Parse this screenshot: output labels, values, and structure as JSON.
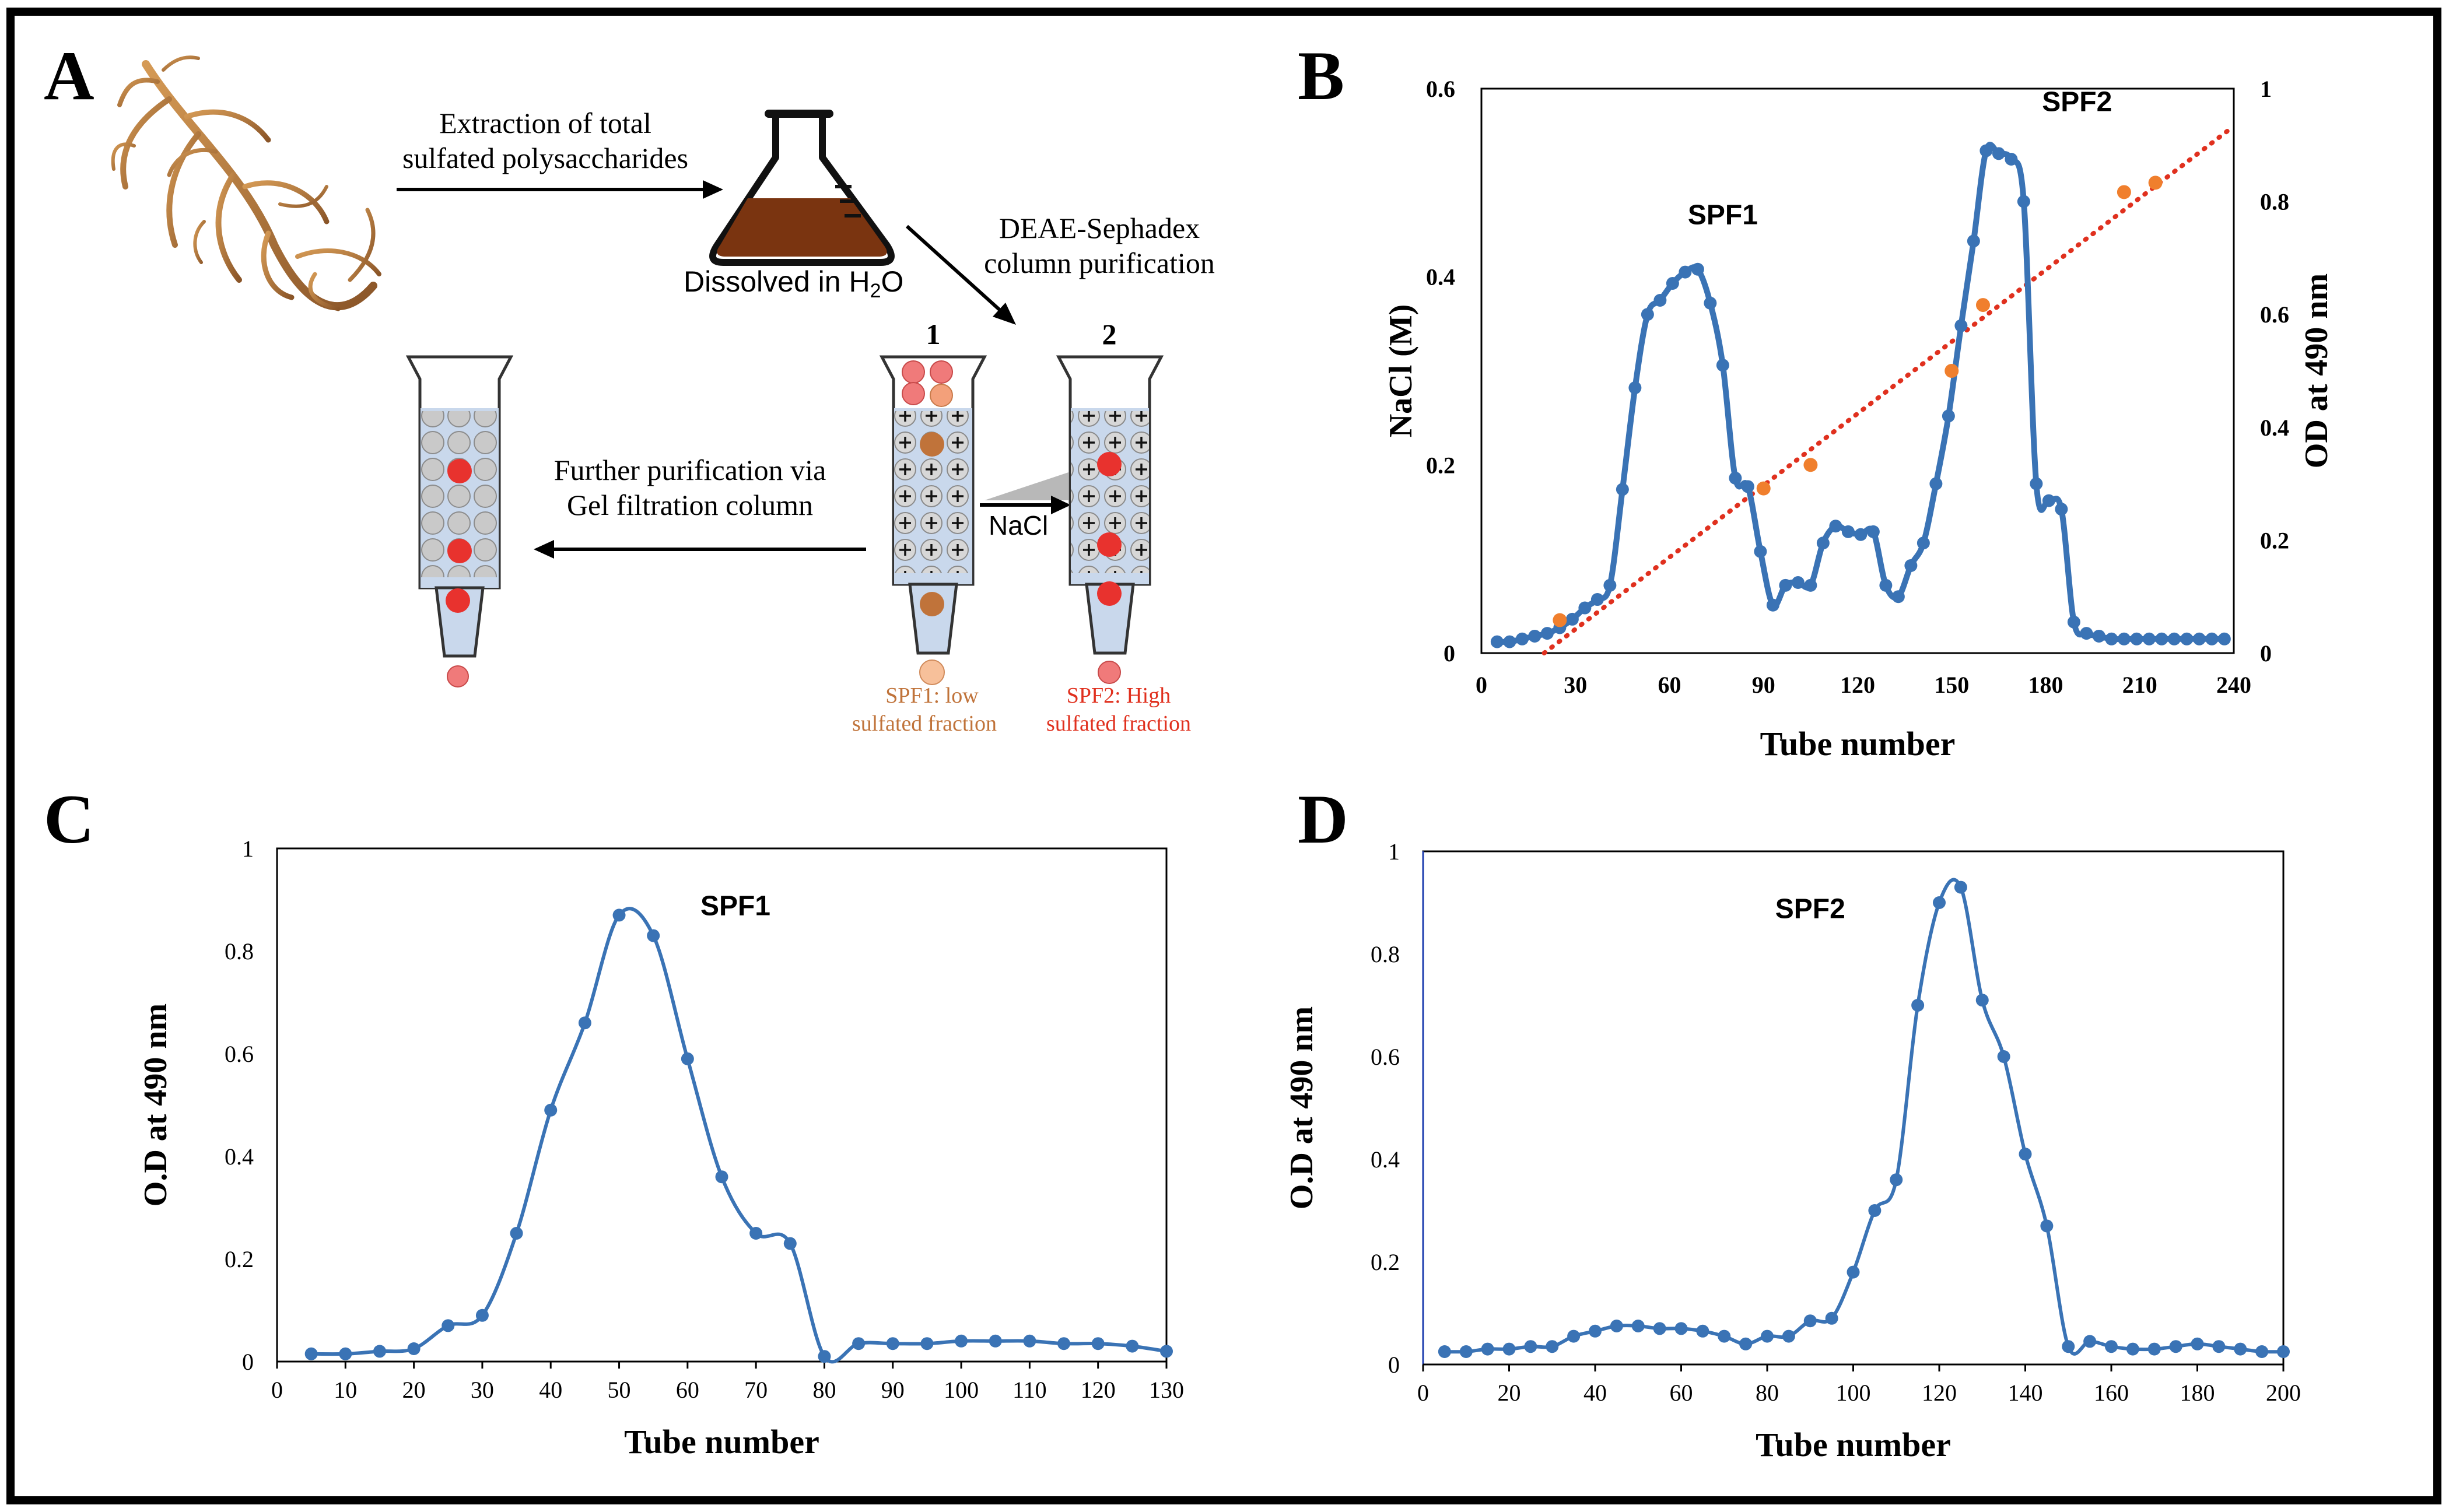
{
  "panels": {
    "A": {
      "letter": "A",
      "step1": [
        "Extraction of total",
        "sulfated polysaccharides"
      ],
      "flask_label": "Dissolved in H",
      "flask_label_sub": "2",
      "flask_label_end": "O",
      "step2": [
        "DEAE-Sephadex",
        "column purification"
      ],
      "column1_number": "1",
      "column2_number": "2",
      "salt_label": "NaCl",
      "step3": [
        "Further purification via",
        "Gel filtration column"
      ],
      "fraction1": [
        "SPF1: low",
        "sulfated fraction"
      ],
      "fraction2": [
        "SPF2: High",
        "sulfated fraction"
      ],
      "colors": {
        "low": "#c0733a",
        "high": "#e8322e",
        "flask_liquid": "#7a3410"
      }
    },
    "B": {
      "letter": "B"
    },
    "C": {
      "letter": "C"
    },
    "D": {
      "letter": "D"
    }
  },
  "chart_data": [
    {
      "panel": "B",
      "type": "line",
      "xlabel": "Tube number",
      "ylabel_left": "NaCl (M)",
      "ylabel_right": "OD at 490 nm",
      "xlim": [
        0,
        240
      ],
      "ylim_left": [
        0,
        0.6
      ],
      "ylim_right": [
        0,
        1
      ],
      "x_ticks": [
        0,
        30,
        60,
        90,
        120,
        150,
        180,
        210,
        240
      ],
      "y_ticks_left": [
        0,
        0.2,
        0.4,
        0.6
      ],
      "y_ticks_left_labels": [
        "0",
        "0.2",
        "0.4",
        "0.6"
      ],
      "y_ticks_right": [
        0,
        0.2,
        0.4,
        0.6,
        0.8,
        1
      ],
      "y_ticks_right_labels": [
        "0",
        "0.2",
        "0.4",
        "0.6",
        "0.8",
        "1"
      ],
      "annotations": [
        {
          "text": "SPF1",
          "x": 77,
          "y": 0.76
        },
        {
          "text": "SPF2",
          "x": 190,
          "y": 0.96
        }
      ],
      "series": [
        {
          "name": "OD at 490 nm",
          "axis": "right",
          "color": "#3a73b5",
          "style": "smooth-markers",
          "x": [
            5,
            9,
            13,
            17,
            21,
            25,
            29,
            33,
            37,
            41,
            45,
            49,
            53,
            57,
            61,
            65,
            69,
            73,
            77,
            81,
            85,
            89,
            93,
            97,
            101,
            105,
            109,
            113,
            117,
            121,
            125,
            129,
            133,
            137,
            141,
            145,
            149,
            153,
            157,
            161,
            165,
            169,
            173,
            177,
            181,
            185,
            189,
            193,
            197,
            201,
            205,
            209,
            213,
            217,
            221,
            225,
            229,
            233,
            237
          ],
          "y": [
            0.02,
            0.02,
            0.025,
            0.03,
            0.035,
            0.045,
            0.06,
            0.08,
            0.095,
            0.12,
            0.29,
            0.47,
            0.6,
            0.625,
            0.655,
            0.675,
            0.68,
            0.62,
            0.51,
            0.31,
            0.295,
            0.18,
            0.085,
            0.12,
            0.125,
            0.12,
            0.195,
            0.225,
            0.215,
            0.21,
            0.215,
            0.12,
            0.1,
            0.155,
            0.195,
            0.3,
            0.42,
            0.58,
            0.73,
            0.89,
            0.885,
            0.875,
            0.8,
            0.3,
            0.27,
            0.255,
            0.055,
            0.035,
            0.03,
            0.025,
            0.025,
            0.025,
            0.025,
            0.025,
            0.025,
            0.025,
            0.025,
            0.025,
            0.025
          ]
        },
        {
          "name": "NaCl gradient",
          "axis": "left",
          "color": "#e0301e",
          "style": "dotted-line",
          "x": [
            20,
            238
          ],
          "y": [
            0,
            0.555
          ]
        },
        {
          "name": "NaCl measured",
          "axis": "left",
          "color": "#f07f2d",
          "style": "scatter",
          "x": [
            25,
            90,
            105,
            150,
            160,
            205,
            215
          ],
          "y": [
            0.035,
            0.175,
            0.2,
            0.3,
            0.37,
            0.49,
            0.5
          ]
        }
      ]
    },
    {
      "panel": "C",
      "type": "line",
      "xlabel": "Tube number",
      "ylabel": "O.D at 490 nm",
      "xlim": [
        0,
        130
      ],
      "ylim": [
        0,
        1
      ],
      "x_ticks": [
        0,
        10,
        20,
        30,
        40,
        50,
        60,
        70,
        80,
        90,
        100,
        110,
        120,
        130
      ],
      "y_ticks": [
        0,
        0.2,
        0.4,
        0.6,
        0.8,
        1
      ],
      "y_ticks_labels": [
        "0",
        "0.2",
        "0.4",
        "0.6",
        "0.8",
        "1"
      ],
      "annotations": [
        {
          "text": "SPF1",
          "x": 67,
          "y": 0.87
        }
      ],
      "series": [
        {
          "name": "SPF1",
          "color": "#3a73b5",
          "x": [
            5,
            10,
            15,
            20,
            25,
            30,
            35,
            40,
            45,
            50,
            55,
            60,
            65,
            70,
            75,
            80,
            85,
            90,
            95,
            100,
            105,
            110,
            115,
            120,
            125,
            130
          ],
          "y": [
            0.015,
            0.015,
            0.02,
            0.025,
            0.07,
            0.09,
            0.25,
            0.49,
            0.66,
            0.87,
            0.83,
            0.59,
            0.36,
            0.25,
            0.23,
            0.01,
            0.035,
            0.035,
            0.035,
            0.04,
            0.04,
            0.04,
            0.035,
            0.035,
            0.03,
            0.02
          ]
        }
      ]
    },
    {
      "panel": "D",
      "type": "line",
      "xlabel": "Tube number",
      "ylabel": "O.D at 490 nm",
      "xlim": [
        0,
        200
      ],
      "ylim": [
        0,
        1
      ],
      "x_ticks": [
        0,
        20,
        40,
        60,
        80,
        100,
        120,
        140,
        160,
        180,
        200
      ],
      "y_ticks": [
        0,
        0.2,
        0.4,
        0.6,
        0.8,
        1
      ],
      "y_ticks_labels": [
        "0",
        "0.2",
        "0.4",
        "0.6",
        "0.8",
        "1"
      ],
      "annotations": [
        {
          "text": "SPF2",
          "x": 90,
          "y": 0.87
        }
      ],
      "series": [
        {
          "name": "SPF2",
          "color": "#3a73b5",
          "x": [
            5,
            10,
            15,
            20,
            25,
            30,
            35,
            40,
            45,
            50,
            55,
            60,
            65,
            70,
            75,
            80,
            85,
            90,
            95,
            100,
            105,
            110,
            115,
            120,
            125,
            130,
            135,
            140,
            145,
            150,
            155,
            160,
            165,
            170,
            175,
            180,
            185,
            190,
            195,
            200
          ],
          "y": [
            0.025,
            0.025,
            0.03,
            0.03,
            0.035,
            0.035,
            0.055,
            0.065,
            0.075,
            0.075,
            0.07,
            0.07,
            0.065,
            0.055,
            0.04,
            0.055,
            0.055,
            0.085,
            0.09,
            0.18,
            0.3,
            0.36,
            0.7,
            0.9,
            0.93,
            0.71,
            0.6,
            0.41,
            0.27,
            0.035,
            0.045,
            0.035,
            0.03,
            0.03,
            0.035,
            0.04,
            0.035,
            0.03,
            0.025,
            0.025
          ]
        }
      ]
    }
  ]
}
